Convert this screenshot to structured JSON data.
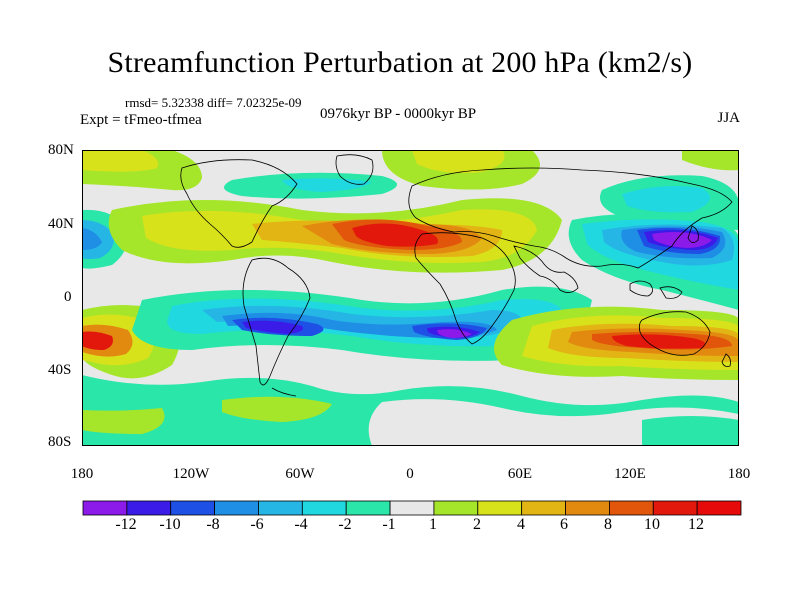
{
  "title": "Streamfunction Perturbation at 200 hPa (km2/s)",
  "stats": "rmsd= 5.32338  diff= 7.02325e-09",
  "experiment": "Expt = tFmeo-tfmea",
  "period": "0976kyr BP - 0000kyr BP",
  "season": "JJA",
  "lat_ticks": [
    "80N",
    "40N",
    "0",
    "40S",
    "80S"
  ],
  "lon_ticks": [
    "180",
    "120W",
    "60W",
    "0",
    "60E",
    "120E",
    "180"
  ],
  "colorbar": {
    "labels": [
      "-12",
      "-10",
      "-8",
      "-6",
      "-4",
      "-2",
      "-1",
      "1",
      "2",
      "4",
      "6",
      "8",
      "10",
      "12"
    ],
    "colors": [
      "#8c1ae8",
      "#3a1be8",
      "#1f50e6",
      "#1f8fe6",
      "#26b6e6",
      "#20d8e0",
      "#2ae6a8",
      "#e8e8e8",
      "#a6e62a",
      "#d8e21a",
      "#e2b414",
      "#e28a10",
      "#e2560c",
      "#e2180c",
      "#e60a0a"
    ]
  },
  "map_data": {
    "field": "streamfunction perturbation",
    "level_hPa": 200,
    "units": "km2/s",
    "lon_range": [
      -180,
      180
    ],
    "lat_range": [
      -90,
      90
    ],
    "background_color": "#e8e8e8"
  }
}
